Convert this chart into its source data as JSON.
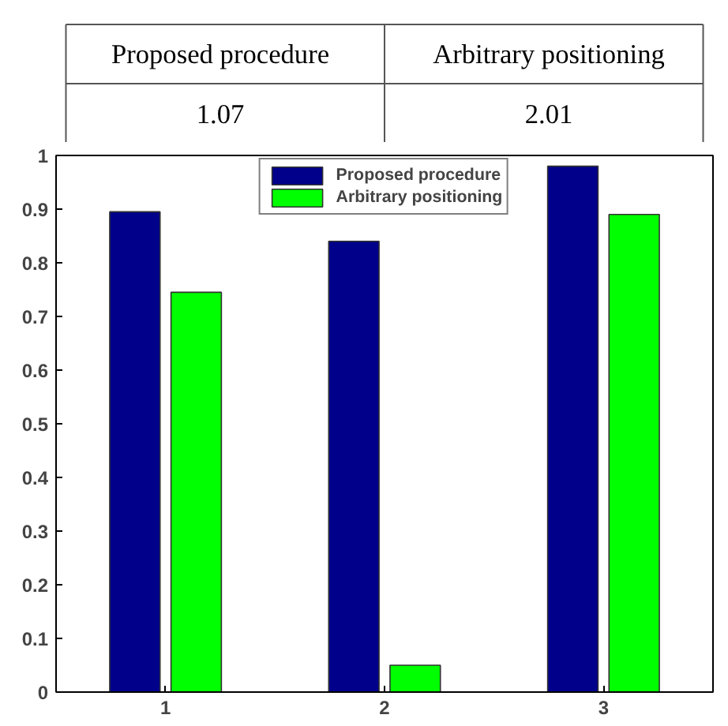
{
  "chart_data": [
    {
      "type": "other",
      "annotations": [
        "Proposed procedure",
        "Arbitrary positioning",
        "1.07",
        "2.01"
      ]
    },
    {
      "type": "bar",
      "categories": [
        "1",
        "2",
        "3"
      ],
      "series": [
        {
          "name": "Proposed procedure",
          "color": "#00008b",
          "values": [
            0.895,
            0.84,
            0.98
          ]
        },
        {
          "name": "Arbitrary positioning",
          "color": "#00ff00",
          "values": [
            0.745,
            0.05,
            0.89
          ]
        }
      ],
      "ylim": [
        0,
        1
      ],
      "yticks": [
        0,
        0.1,
        0.2,
        0.3,
        0.4,
        0.5,
        0.6,
        0.7,
        0.8,
        0.9,
        1
      ],
      "legend": "top",
      "grid": false
    }
  ]
}
